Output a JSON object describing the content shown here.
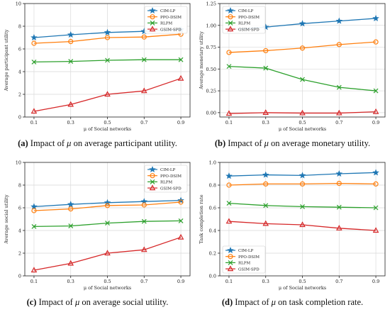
{
  "chart_data": [
    {
      "type": "line",
      "xlabel": "μ of Social networks",
      "ylabel": "Average participant utility",
      "x": [
        0.1,
        0.3,
        0.5,
        0.7,
        0.9
      ],
      "xticks": [
        "0.1",
        "0.3",
        "0.5",
        "0.7",
        "0.9"
      ],
      "ylim": [
        0,
        10
      ],
      "yticks": [
        0,
        2,
        4,
        6,
        8,
        10
      ],
      "ytick_labels": [
        "0",
        "2",
        "4",
        "6",
        "8",
        "10"
      ],
      "grid": true,
      "legend_position": "top-right",
      "series": [
        {
          "name": "CIM-LP",
          "values": [
            7.0,
            7.25,
            7.45,
            7.55,
            7.7
          ]
        },
        {
          "name": "PPO-DSIM",
          "values": [
            6.5,
            6.65,
            7.0,
            7.05,
            7.3
          ]
        },
        {
          "name": "RLPM",
          "values": [
            4.85,
            4.9,
            5.0,
            5.05,
            5.05
          ]
        },
        {
          "name": "GSIM-SPD",
          "values": [
            0.5,
            1.1,
            2.0,
            2.3,
            3.4
          ]
        }
      ],
      "caption_label": "(a)",
      "caption_pre": "Impact of",
      "caption_mu": "μ",
      "caption_post": "on average participant utility."
    },
    {
      "type": "line",
      "xlabel": "μ of Social networks",
      "ylabel": "Average monetary utility",
      "x": [
        0.1,
        0.3,
        0.5,
        0.7,
        0.9
      ],
      "xticks": [
        "0.1",
        "0.3",
        "0.5",
        "0.7",
        "0.9"
      ],
      "ylim": [
        -0.05,
        1.25
      ],
      "yticks": [
        0,
        0.25,
        0.5,
        0.75,
        1.0,
        1.25
      ],
      "ytick_labels": [
        "0.00",
        "0.25",
        "0.50",
        "0.75",
        "1.00",
        "1.25"
      ],
      "grid": true,
      "legend_position": "top-left",
      "series": [
        {
          "name": "CIM-LP",
          "values": [
            0.95,
            0.98,
            1.02,
            1.05,
            1.08
          ]
        },
        {
          "name": "PPO-DSIM",
          "values": [
            0.69,
            0.71,
            0.74,
            0.78,
            0.81
          ]
        },
        {
          "name": "RLPM",
          "values": [
            0.53,
            0.51,
            0.38,
            0.29,
            0.25
          ]
        },
        {
          "name": "GSIM-SPD",
          "values": [
            -0.01,
            0.0,
            -0.005,
            -0.005,
            0.01
          ]
        }
      ],
      "caption_label": "(b)",
      "caption_pre": "Impact of",
      "caption_mu": "μ",
      "caption_post": "on average monetary utility."
    },
    {
      "type": "line",
      "xlabel": "μ of Social networks",
      "ylabel": "Average social utility",
      "x": [
        0.1,
        0.3,
        0.5,
        0.7,
        0.9
      ],
      "xticks": [
        "0.1",
        "0.3",
        "0.5",
        "0.7",
        "0.9"
      ],
      "ylim": [
        0,
        10
      ],
      "yticks": [
        0,
        2,
        4,
        6,
        8,
        10
      ],
      "ytick_labels": [
        "0",
        "2",
        "4",
        "6",
        "8",
        "10"
      ],
      "grid": true,
      "legend_position": "top-right",
      "series": [
        {
          "name": "CIM-LP",
          "values": [
            6.1,
            6.3,
            6.45,
            6.55,
            6.65
          ]
        },
        {
          "name": "PPO-DSIM",
          "values": [
            5.75,
            5.9,
            6.2,
            6.25,
            6.5
          ]
        },
        {
          "name": "RLPM",
          "values": [
            4.35,
            4.4,
            4.65,
            4.8,
            4.85
          ]
        },
        {
          "name": "GSIM-SPD",
          "values": [
            0.5,
            1.1,
            2.0,
            2.3,
            3.4
          ]
        }
      ],
      "caption_label": "(c)",
      "caption_pre": "Impact of",
      "caption_mu": "μ",
      "caption_post": "on average social utility."
    },
    {
      "type": "line",
      "xlabel": "μ of Social networks",
      "ylabel": "Task completion rate",
      "x": [
        0.1,
        0.3,
        0.5,
        0.7,
        0.9
      ],
      "xticks": [
        "0.1",
        "0.3",
        "0.5",
        "0.7",
        "0.9"
      ],
      "ylim": [
        0,
        1.0
      ],
      "yticks": [
        0,
        0.2,
        0.4,
        0.6,
        0.8,
        1.0
      ],
      "ytick_labels": [
        "0.0",
        "0.2",
        "0.4",
        "0.6",
        "0.8",
        "1.0"
      ],
      "grid": true,
      "legend_position": "bottom-left",
      "series": [
        {
          "name": "CIM-LP",
          "values": [
            0.88,
            0.89,
            0.885,
            0.9,
            0.91
          ]
        },
        {
          "name": "PPO-DSIM",
          "values": [
            0.8,
            0.81,
            0.81,
            0.815,
            0.81
          ]
        },
        {
          "name": "RLPM",
          "values": [
            0.64,
            0.62,
            0.61,
            0.605,
            0.6
          ]
        },
        {
          "name": "GSIM-SPD",
          "values": [
            0.48,
            0.46,
            0.45,
            0.42,
            0.4
          ]
        }
      ],
      "caption_label": "(d)",
      "caption_pre": "Impact of",
      "caption_mu": "μ",
      "caption_post": "on task completion rate."
    }
  ],
  "styles": {
    "series_colors": [
      "#1f77b4",
      "#ff7f0e",
      "#2ca02c",
      "#d62728"
    ],
    "series_markers": [
      "star",
      "circle",
      "x",
      "triangle"
    ],
    "grid_color": "#d9d9d9",
    "axis_color": "#222222"
  }
}
